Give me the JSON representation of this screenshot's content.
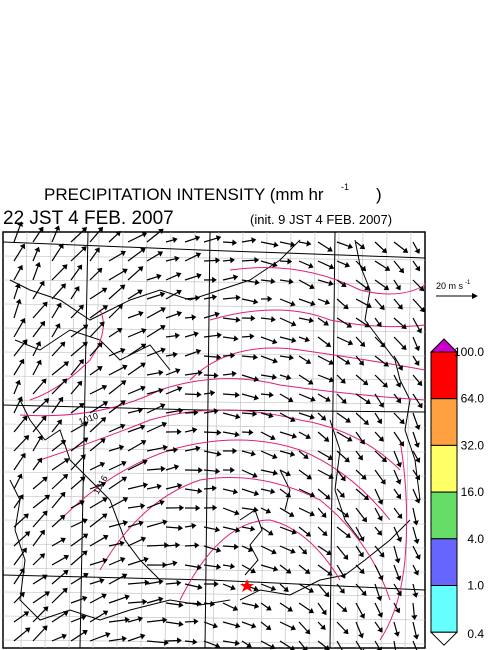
{
  "header": {
    "title": "PRECIPITATION INTENSITY (mm hr",
    "title_exponent": "-1",
    "title_close": ")",
    "valid_time": "22 JST 4 FEB. 2007",
    "init_time": "(init. 9 JST 4 FEB. 2007)"
  },
  "vector_scale": {
    "label": "20 m s",
    "exponent": "-1"
  },
  "colorbar": {
    "labels": [
      "100.0",
      "64.0",
      "32.0",
      "16.0",
      "4.0",
      "1.0",
      "0.4"
    ],
    "colors": [
      "#cc00cc",
      "#ff0000",
      "#ffa040",
      "#ffff66",
      "#66dd66",
      "#6666ff",
      "#66ffff",
      "#ffffff"
    ]
  },
  "contour_labels": [
    "1010",
    "1016"
  ]
}
